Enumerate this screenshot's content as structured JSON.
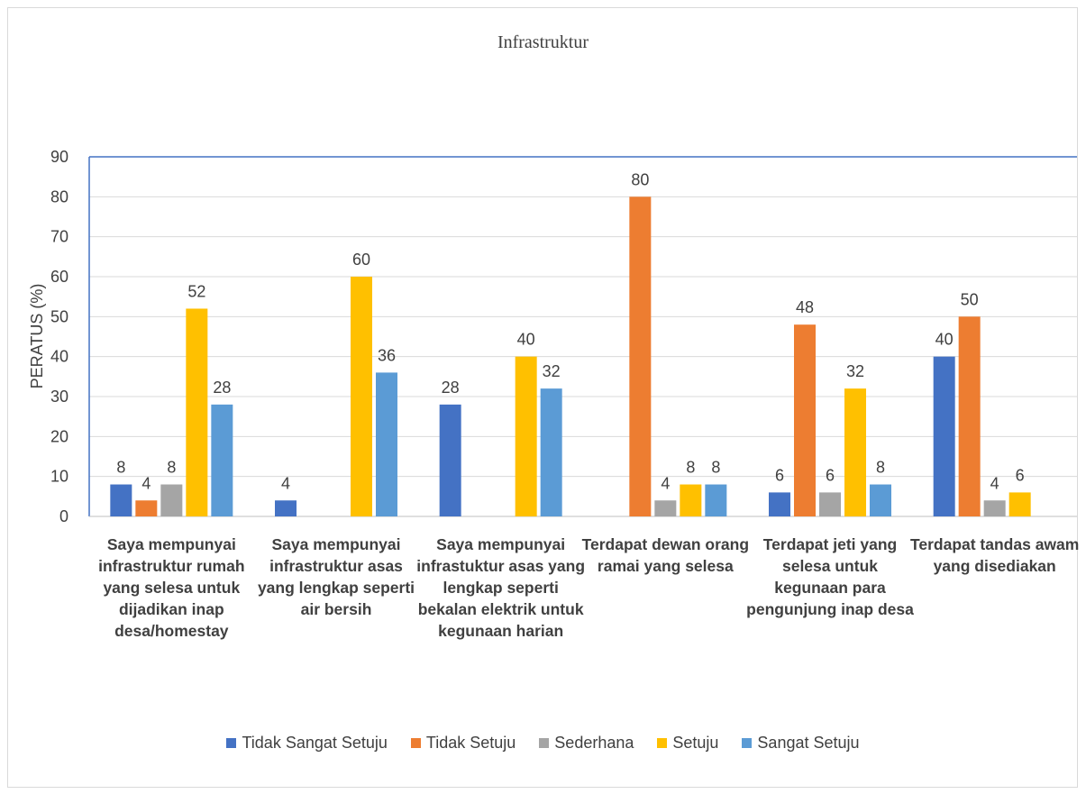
{
  "chart_data": {
    "type": "bar",
    "title": "Infrastruktur",
    "ylabel": "PERATUS (%)",
    "xlabel": "",
    "ylim": [
      0,
      90
    ],
    "yticks": [
      0,
      10,
      20,
      30,
      40,
      50,
      60,
      70,
      80,
      90
    ],
    "grid": true,
    "legend_position": "bottom",
    "categories": [
      "Saya mempunyai infrastruktur rumah yang selesa untuk dijadikan inap desa/homestay",
      "Saya mempunyai infrastruktur asas yang lengkap seperti air bersih",
      "Saya mempunyai infrastuktur asas yang lengkap seperti bekalan elektrik untuk kegunaan harian",
      "Terdapat dewan orang ramai yang selesa",
      "Terdapat jeti yang selesa untuk kegunaan para pengunjung inap desa",
      "Terdapat tandas awam yang disediakan"
    ],
    "series": [
      {
        "name": "Tidak Sangat Setuju",
        "color": "#4472c4",
        "values": [
          8,
          4,
          28,
          null,
          6,
          40
        ]
      },
      {
        "name": "Tidak Setuju",
        "color": "#ed7d31",
        "values": [
          4,
          null,
          null,
          80,
          48,
          50
        ]
      },
      {
        "name": "Sederhana",
        "color": "#a5a5a5",
        "values": [
          8,
          null,
          null,
          4,
          6,
          4
        ]
      },
      {
        "name": "Setuju",
        "color": "#ffc000",
        "values": [
          52,
          60,
          40,
          8,
          32,
          6
        ]
      },
      {
        "name": "Sangat Setuju",
        "color": "#5b9bd5",
        "values": [
          28,
          36,
          32,
          8,
          8,
          null
        ]
      }
    ]
  }
}
